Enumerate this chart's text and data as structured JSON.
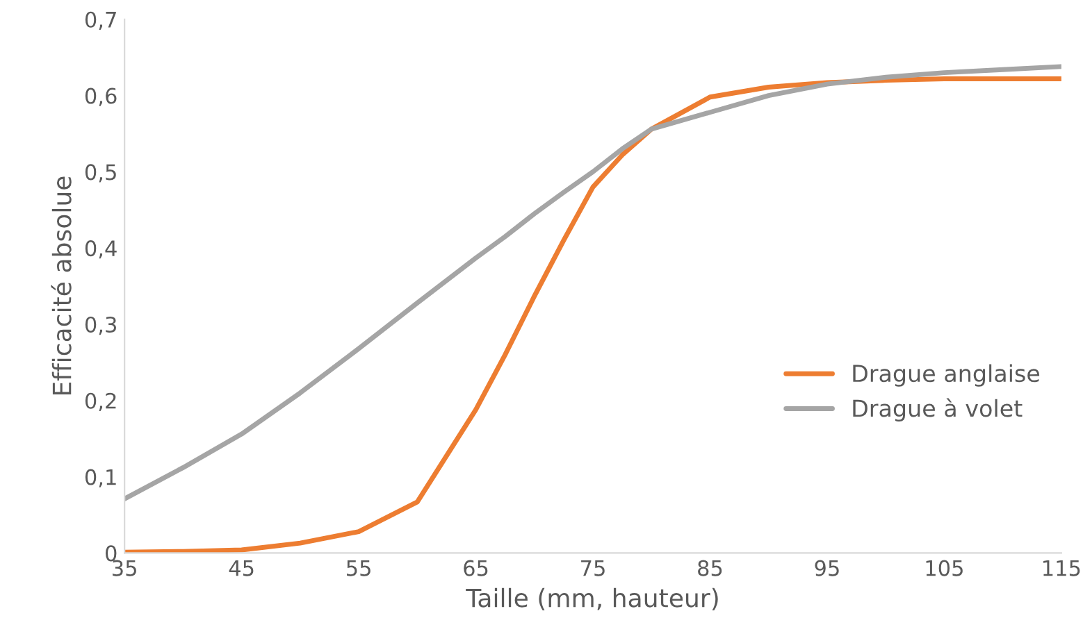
{
  "chart_data": {
    "type": "line",
    "xlabel": "Taille (mm, hauteur)",
    "ylabel": "Efficacité absolue",
    "x": [
      35,
      40,
      45,
      50,
      55,
      60,
      65,
      67.5,
      70,
      72.5,
      75,
      77.5,
      80,
      85,
      90,
      95,
      100,
      105,
      110,
      115
    ],
    "series": [
      {
        "name": "Drague anglaise",
        "color": "#ed7d31",
        "values": [
          0.001,
          0.002,
          0.004,
          0.013,
          0.028,
          0.067,
          0.188,
          0.26,
          0.337,
          0.41,
          0.48,
          0.522,
          0.556,
          0.598,
          0.611,
          0.617,
          0.62,
          0.622,
          0.622,
          0.622
        ]
      },
      {
        "name": "Drague à volet",
        "color": "#a5a5a5",
        "values": [
          0.071,
          0.112,
          0.156,
          0.21,
          0.268,
          0.328,
          0.387,
          0.415,
          0.445,
          0.473,
          0.5,
          0.53,
          0.556,
          0.578,
          0.6,
          0.615,
          0.624,
          0.63,
          0.634,
          0.638
        ]
      }
    ],
    "xlim": [
      35,
      115
    ],
    "xticks": [
      {
        "value": 35,
        "label": "35"
      },
      {
        "value": 45,
        "label": "45"
      },
      {
        "value": 55,
        "label": "55"
      },
      {
        "value": 65,
        "label": "65"
      },
      {
        "value": 75,
        "label": "75"
      },
      {
        "value": 85,
        "label": "85"
      },
      {
        "value": 95,
        "label": "95"
      },
      {
        "value": 105,
        "label": "105"
      },
      {
        "value": 115,
        "label": "115"
      }
    ],
    "ylim": [
      0,
      0.7
    ],
    "yticks": [
      {
        "value": 0,
        "label": "0"
      },
      {
        "value": 0.1,
        "label": "0,1"
      },
      {
        "value": 0.2,
        "label": "0,2"
      },
      {
        "value": 0.3,
        "label": "0,3"
      },
      {
        "value": 0.4,
        "label": "0,4"
      },
      {
        "value": 0.5,
        "label": "0,5"
      },
      {
        "value": 0.6,
        "label": "0,6"
      },
      {
        "value": 0.7,
        "label": "0,7"
      }
    ],
    "grid": false,
    "legend": "right",
    "marker": "none",
    "line_style": "solid"
  }
}
